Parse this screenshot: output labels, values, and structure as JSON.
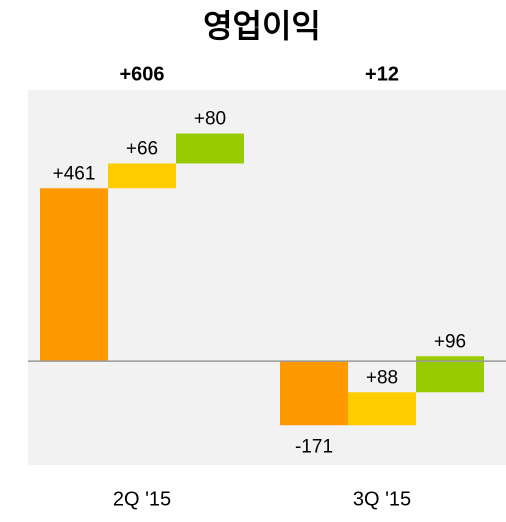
{
  "chart_data": {
    "type": "waterfall",
    "title": "영업이익",
    "categories": [
      "2Q '15",
      "3Q '15"
    ],
    "totals": [
      606,
      12
    ],
    "totals_labels": [
      "+606",
      "+12"
    ],
    "series": [
      {
        "color": "#FF9900",
        "values": [
          461,
          -171
        ],
        "value_labels": [
          "+461",
          "-171"
        ]
      },
      {
        "color": "#FFCC00",
        "values": [
          66,
          88
        ],
        "value_labels": [
          "+66",
          "+88"
        ]
      },
      {
        "color": "#99CC00",
        "values": [
          80,
          96
        ],
        "value_labels": [
          "+80",
          "+96"
        ]
      }
    ],
    "ylim": [
      -277,
      723
    ]
  }
}
